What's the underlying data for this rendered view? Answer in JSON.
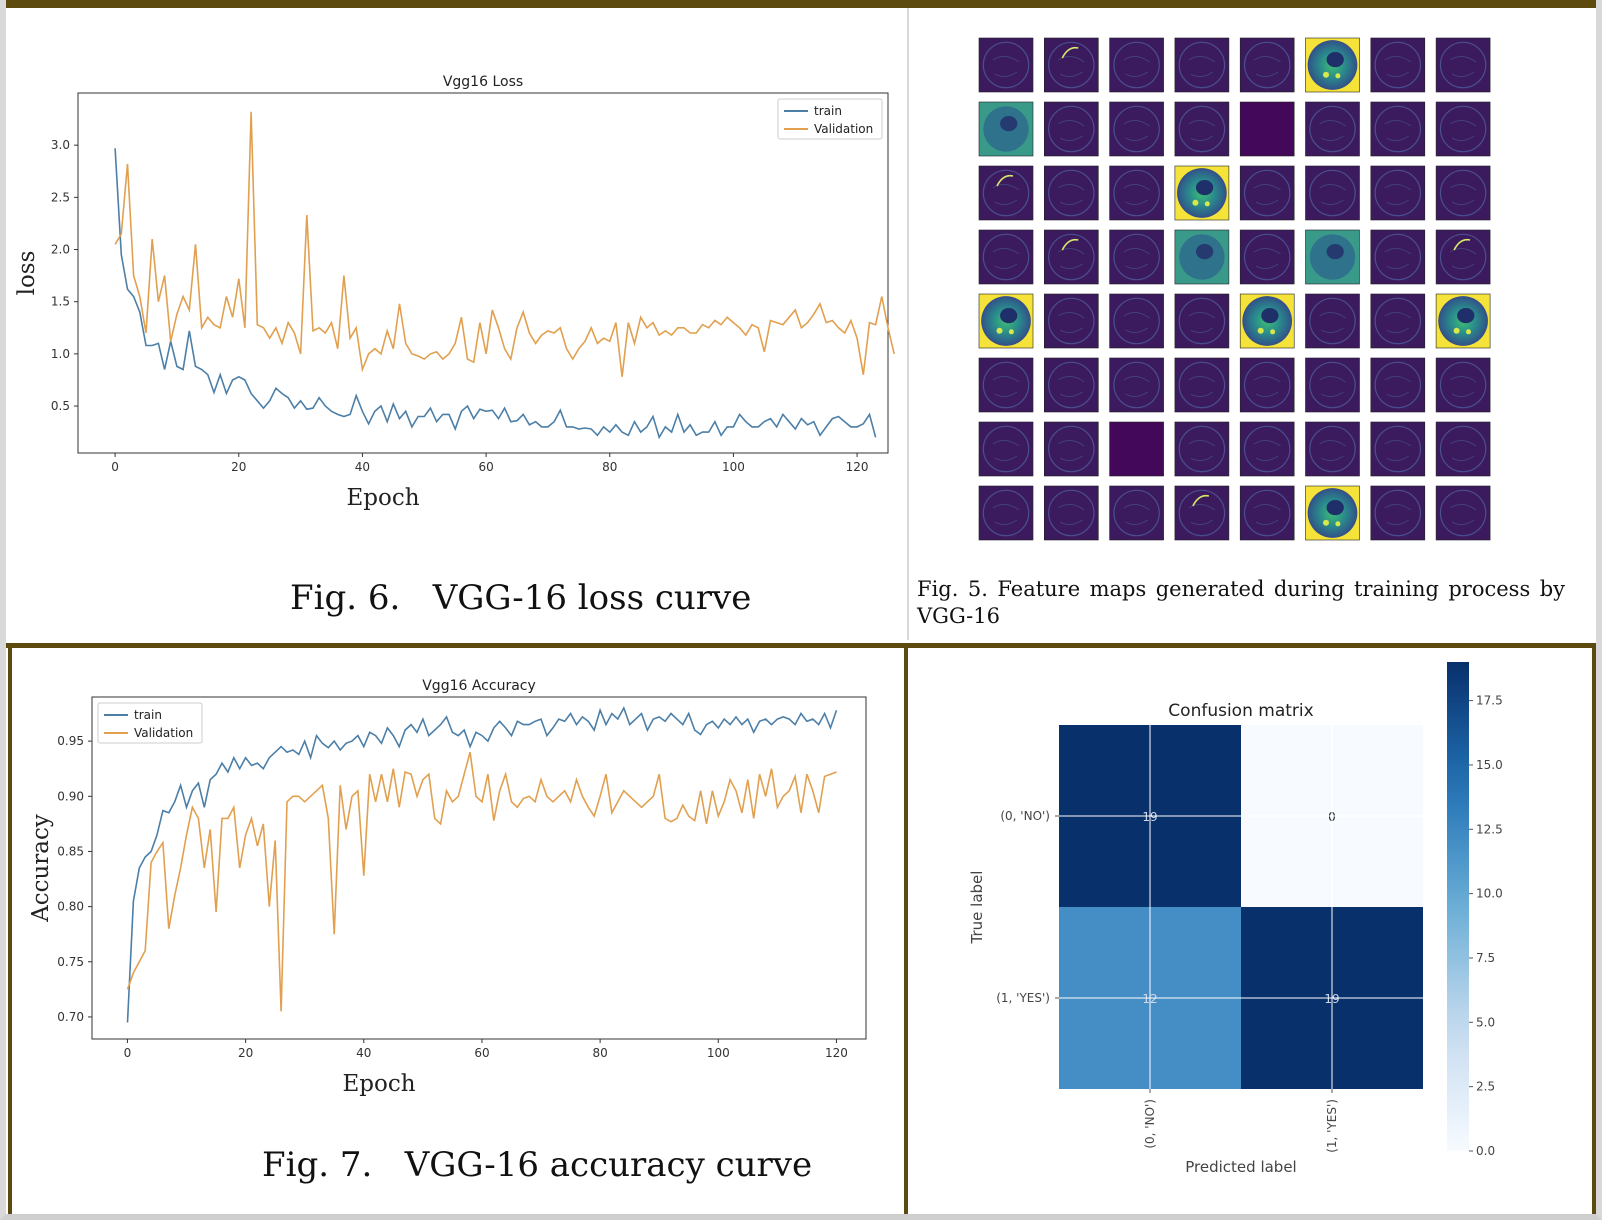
{
  "colors": {
    "train": "#4c7fa8",
    "validation": "#e1a04f",
    "accent_border": "#5c4a0e"
  },
  "chart_data": [
    {
      "id": "loss",
      "type": "line",
      "title": "Vgg16 Loss",
      "xlabel": "Epoch",
      "ylabel": "loss",
      "xlim": [
        -6,
        125
      ],
      "ylim": [
        0.05,
        3.5
      ],
      "xticks": [
        0,
        20,
        40,
        60,
        80,
        100,
        120
      ],
      "yticks": [
        0.5,
        1.0,
        1.5,
        2.0,
        2.5,
        3.0
      ],
      "ytick_labels": [
        "0.5",
        "1.0",
        "1.5",
        "2.0",
        "2.5",
        "3.0"
      ],
      "legend": "top-right",
      "grid": false,
      "series": [
        {
          "name": "train",
          "values": [
            2.97,
            1.95,
            1.62,
            1.55,
            1.4,
            1.08,
            1.08,
            1.1,
            0.85,
            1.12,
            0.88,
            0.85,
            1.22,
            0.88,
            0.85,
            0.8,
            0.63,
            0.8,
            0.62,
            0.75,
            0.78,
            0.75,
            0.62,
            0.55,
            0.48,
            0.55,
            0.67,
            0.62,
            0.58,
            0.48,
            0.55,
            0.47,
            0.48,
            0.58,
            0.5,
            0.45,
            0.42,
            0.4,
            0.42,
            0.6,
            0.45,
            0.33,
            0.45,
            0.5,
            0.35,
            0.52,
            0.38,
            0.45,
            0.3,
            0.4,
            0.4,
            0.48,
            0.35,
            0.42,
            0.42,
            0.28,
            0.45,
            0.5,
            0.38,
            0.47,
            0.45,
            0.46,
            0.38,
            0.48,
            0.35,
            0.36,
            0.42,
            0.32,
            0.35,
            0.3,
            0.3,
            0.35,
            0.46,
            0.3,
            0.3,
            0.28,
            0.29,
            0.28,
            0.22,
            0.3,
            0.25,
            0.32,
            0.25,
            0.22,
            0.35,
            0.25,
            0.3,
            0.4,
            0.2,
            0.3,
            0.25,
            0.42,
            0.25,
            0.32,
            0.22,
            0.25,
            0.25,
            0.35,
            0.22,
            0.3,
            0.3,
            0.42,
            0.35,
            0.3,
            0.3,
            0.35,
            0.38,
            0.3,
            0.42,
            0.35,
            0.28,
            0.38,
            0.32,
            0.35,
            0.22,
            0.3,
            0.38,
            0.4,
            0.35,
            0.3,
            0.3,
            0.33,
            0.42,
            0.2
          ]
        },
        {
          "name": "Validation",
          "values": [
            2.05,
            2.15,
            2.82,
            1.75,
            1.55,
            1.2,
            2.1,
            1.5,
            1.75,
            1.12,
            1.38,
            1.55,
            1.42,
            2.05,
            1.25,
            1.35,
            1.28,
            1.25,
            1.55,
            1.35,
            1.72,
            1.25,
            3.32,
            1.28,
            1.25,
            1.15,
            1.25,
            1.1,
            1.3,
            1.2,
            1.0,
            2.33,
            1.22,
            1.25,
            1.2,
            1.3,
            1.05,
            1.75,
            1.15,
            1.25,
            0.85,
            1.0,
            1.05,
            1.0,
            1.22,
            1.05,
            1.48,
            1.1,
            1.0,
            0.98,
            0.95,
            1.0,
            1.02,
            0.95,
            1.0,
            1.1,
            1.35,
            0.95,
            0.92,
            1.3,
            1.0,
            1.42,
            1.25,
            1.05,
            0.95,
            1.25,
            1.4,
            1.2,
            1.1,
            1.18,
            1.22,
            1.2,
            1.25,
            1.05,
            0.95,
            1.05,
            1.12,
            1.25,
            1.1,
            1.15,
            1.12,
            1.3,
            0.78,
            1.3,
            1.1,
            1.35,
            1.25,
            1.3,
            1.18,
            1.22,
            1.18,
            1.25,
            1.25,
            1.2,
            1.2,
            1.28,
            1.25,
            1.32,
            1.28,
            1.35,
            1.3,
            1.25,
            1.18,
            1.28,
            1.25,
            1.02,
            1.32,
            1.3,
            1.28,
            1.35,
            1.42,
            1.25,
            1.3,
            1.38,
            1.48,
            1.3,
            1.32,
            1.25,
            1.2,
            1.32,
            1.15,
            0.8,
            1.3,
            1.28,
            1.55,
            1.25,
            1.0
          ]
        }
      ]
    },
    {
      "id": "accuracy",
      "type": "line",
      "title": "Vgg16 Accuracy",
      "xlabel": "Epoch",
      "ylabel": "Accuracy",
      "xlim": [
        -6,
        125
      ],
      "ylim": [
        0.68,
        0.99
      ],
      "xticks": [
        0,
        20,
        40,
        60,
        80,
        100,
        120
      ],
      "yticks": [
        0.7,
        0.75,
        0.8,
        0.85,
        0.9,
        0.95
      ],
      "ytick_labels": [
        "0.70",
        "0.75",
        "0.80",
        "0.85",
        "0.90",
        "0.95"
      ],
      "legend": "top-left",
      "grid": false,
      "series": [
        {
          "name": "train",
          "values": [
            0.695,
            0.805,
            0.835,
            0.845,
            0.85,
            0.865,
            0.887,
            0.885,
            0.895,
            0.91,
            0.89,
            0.905,
            0.912,
            0.89,
            0.915,
            0.92,
            0.93,
            0.922,
            0.935,
            0.925,
            0.935,
            0.928,
            0.93,
            0.925,
            0.935,
            0.94,
            0.945,
            0.94,
            0.942,
            0.938,
            0.95,
            0.935,
            0.955,
            0.948,
            0.944,
            0.95,
            0.942,
            0.948,
            0.95,
            0.955,
            0.945,
            0.958,
            0.955,
            0.948,
            0.962,
            0.955,
            0.945,
            0.96,
            0.965,
            0.958,
            0.97,
            0.955,
            0.96,
            0.965,
            0.972,
            0.958,
            0.955,
            0.96,
            0.945,
            0.958,
            0.955,
            0.95,
            0.962,
            0.968,
            0.962,
            0.955,
            0.968,
            0.965,
            0.965,
            0.968,
            0.97,
            0.955,
            0.962,
            0.97,
            0.968,
            0.975,
            0.965,
            0.972,
            0.968,
            0.96,
            0.978,
            0.965,
            0.975,
            0.97,
            0.98,
            0.965,
            0.97,
            0.975,
            0.96,
            0.97,
            0.972,
            0.968,
            0.975,
            0.97,
            0.965,
            0.975,
            0.96,
            0.956,
            0.965,
            0.968,
            0.962,
            0.97,
            0.965,
            0.972,
            0.965,
            0.97,
            0.958,
            0.968,
            0.97,
            0.965,
            0.97,
            0.972,
            0.97,
            0.965,
            0.975,
            0.968,
            0.97,
            0.965,
            0.975,
            0.962,
            0.978
          ]
        },
        {
          "name": "Validation",
          "values": [
            0.725,
            0.74,
            0.75,
            0.76,
            0.84,
            0.85,
            0.858,
            0.78,
            0.81,
            0.835,
            0.865,
            0.89,
            0.88,
            0.835,
            0.87,
            0.795,
            0.88,
            0.88,
            0.89,
            0.835,
            0.865,
            0.88,
            0.855,
            0.875,
            0.8,
            0.86,
            0.705,
            0.895,
            0.9,
            0.9,
            0.895,
            0.9,
            0.905,
            0.91,
            0.88,
            0.775,
            0.91,
            0.87,
            0.9,
            0.905,
            0.828,
            0.92,
            0.895,
            0.92,
            0.895,
            0.925,
            0.89,
            0.922,
            0.92,
            0.9,
            0.915,
            0.92,
            0.88,
            0.875,
            0.905,
            0.895,
            0.9,
            0.92,
            0.94,
            0.9,
            0.895,
            0.92,
            0.878,
            0.905,
            0.92,
            0.895,
            0.89,
            0.898,
            0.9,
            0.895,
            0.915,
            0.9,
            0.895,
            0.9,
            0.905,
            0.895,
            0.915,
            0.9,
            0.89,
            0.882,
            0.9,
            0.92,
            0.885,
            0.895,
            0.905,
            0.9,
            0.895,
            0.89,
            0.895,
            0.9,
            0.92,
            0.88,
            0.877,
            0.88,
            0.892,
            0.882,
            0.878,
            0.905,
            0.875,
            0.905,
            0.882,
            0.895,
            0.915,
            0.905,
            0.885,
            0.915,
            0.88,
            0.92,
            0.9,
            0.925,
            0.89,
            0.9,
            0.905,
            0.918,
            0.885,
            0.92,
            0.905,
            0.885,
            0.918,
            0.92,
            0.922
          ]
        }
      ]
    },
    {
      "id": "confusion",
      "type": "heatmap",
      "title": "Confusion matrix",
      "xlabel": "Predicted label",
      "ylabel": "True label",
      "row_labels": [
        "(0, 'NO')",
        "(1, 'YES')"
      ],
      "col_labels": [
        "(0, 'NO')",
        "(1, 'YES')"
      ],
      "values": [
        [
          19,
          0
        ],
        [
          12,
          19
        ]
      ],
      "colormap": "Blues",
      "vmin": 0,
      "vmax": 19,
      "colorbar_ticks": [
        0.0,
        2.5,
        5.0,
        7.5,
        10.0,
        12.5,
        15.0,
        17.5
      ],
      "colorbar_tick_labels": [
        "0.0",
        "2.5",
        "5.0",
        "7.5",
        "10.0",
        "12.5",
        "15.0",
        "17.5"
      ]
    }
  ],
  "feature_maps": {
    "rows": 8,
    "cols": 8,
    "bright_cells": [
      [
        0,
        5
      ],
      [
        2,
        3
      ],
      [
        4,
        0
      ],
      [
        4,
        4
      ],
      [
        4,
        7
      ],
      [
        7,
        5
      ]
    ],
    "teal_cells": [
      [
        1,
        0
      ],
      [
        3,
        3
      ],
      [
        3,
        5
      ]
    ],
    "dark_cells": [
      [
        1,
        4
      ],
      [
        6,
        2
      ]
    ],
    "arc_cells": [
      [
        0,
        1
      ],
      [
        2,
        0
      ],
      [
        3,
        1
      ],
      [
        3,
        7
      ],
      [
        7,
        3
      ]
    ]
  },
  "captions": {
    "fig6": "Fig. 6.   VGG-16 loss curve",
    "fig5": "Fig. 5.   Feature maps generated during training process by VGG-16",
    "fig7": "Fig. 7.   VGG-16 accuracy curve"
  }
}
